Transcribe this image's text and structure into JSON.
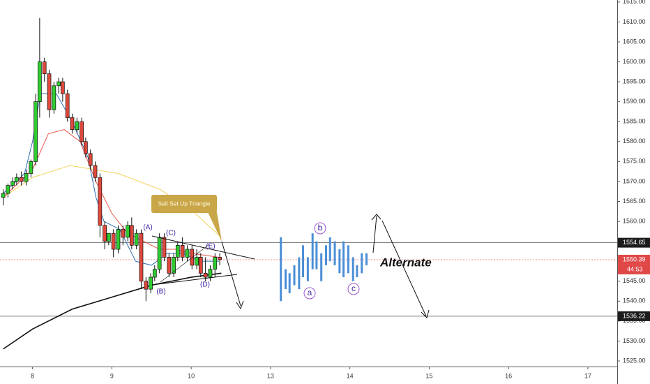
{
  "chart_data": {
    "type": "candlestick",
    "x": [
      -0.37,
      -0.31,
      -0.25,
      -0.2,
      -0.14,
      -0.08,
      -0.02,
      0.04,
      0.09,
      0.15,
      0.21,
      0.27,
      0.33,
      0.38,
      0.44,
      0.5,
      0.56,
      0.62,
      0.67,
      0.73,
      0.79,
      0.85,
      0.91,
      0.96,
      1.02,
      1.08,
      1.14,
      1.2,
      1.25,
      1.31,
      1.37,
      1.43,
      1.49,
      1.54,
      1.6,
      1.66,
      1.72,
      1.78,
      1.83,
      1.89,
      1.95,
      2.01,
      2.07,
      2.12,
      2.18,
      2.24,
      2.3,
      2.36
    ],
    "open": [
      1566,
      1567,
      1569,
      1570,
      1571,
      1570,
      1572,
      1575,
      1590,
      1600,
      1597,
      1588,
      1594,
      1595,
      1592,
      1586,
      1583,
      1585,
      1580,
      1577,
      1574,
      1571,
      1559,
      1555,
      1557,
      1553,
      1558,
      1556,
      1559,
      1554,
      1557,
      1545,
      1543,
      1546,
      1548,
      1556,
      1551,
      1547,
      1551,
      1554,
      1551,
      1553,
      1549,
      1551,
      1547,
      1546,
      1548,
      1551
    ],
    "high": [
      1568,
      1569.5,
      1571,
      1572,
      1572.5,
      1573,
      1575.5,
      1592,
      1611,
      1601,
      1598,
      1595,
      1596,
      1596,
      1593,
      1587,
      1586,
      1586,
      1581,
      1578,
      1575,
      1572,
      1560,
      1557,
      1558,
      1559,
      1559,
      1560,
      1561,
      1558,
      1558,
      1546,
      1547,
      1549,
      1557,
      1557,
      1552,
      1552,
      1555,
      1556,
      1554,
      1554,
      1553,
      1552,
      1551,
      1549,
      1552,
      1552
    ],
    "low": [
      1564,
      1566,
      1568,
      1569,
      1569,
      1569,
      1571,
      1574,
      1586,
      1595,
      1586,
      1587,
      1592,
      1590,
      1585,
      1582,
      1582,
      1579,
      1576,
      1573,
      1570,
      1556,
      1553,
      1554,
      1551,
      1552,
      1554,
      1555,
      1553,
      1553,
      1543,
      1540,
      1542,
      1545,
      1547,
      1550,
      1546,
      1546,
      1550,
      1550,
      1550,
      1548,
      1548,
      1546,
      1545,
      1545,
      1546,
      1549
    ],
    "close": [
      1567,
      1569,
      1570,
      1571,
      1570,
      1572,
      1575,
      1590,
      1600,
      1597,
      1588,
      1594,
      1595,
      1592,
      1586,
      1583,
      1585,
      1580,
      1577,
      1574,
      1571,
      1559,
      1555,
      1557,
      1553,
      1558,
      1556,
      1559,
      1554,
      1557,
      1545,
      1543,
      1546,
      1548,
      1556,
      1551,
      1547,
      1551,
      1554,
      1551,
      1553,
      1549,
      1551,
      1547,
      1546,
      1548,
      1551,
      1550.39
    ],
    "up_color": "#2ecc2e",
    "down_color": "#e0483c",
    "indicators": [
      {
        "color": "#2f6fb0",
        "x": [
          -0.37,
          -0.1,
          0.0,
          0.1,
          0.3,
          0.5,
          0.7,
          0.8,
          0.9,
          1.1,
          1.3,
          1.5,
          1.7,
          1.9,
          2.1,
          2.35
        ],
        "values": [
          1567,
          1572,
          1580,
          1592,
          1592,
          1585,
          1576,
          1566,
          1560,
          1558,
          1550,
          1549,
          1552,
          1552,
          1550,
          1550
        ]
      },
      {
        "color": "#e8564a",
        "x": [
          -0.37,
          0.0,
          0.2,
          0.4,
          0.6,
          0.8,
          1.0,
          1.2,
          1.4,
          1.6,
          1.8,
          2.0,
          2.35
        ],
        "values": [
          1566,
          1573,
          1582,
          1583,
          1580,
          1570,
          1562,
          1557,
          1555,
          1553,
          1553,
          1552,
          1551
        ]
      },
      {
        "color": "#f2d35a",
        "x": [
          -0.37,
          0.0,
          0.47,
          1.08,
          1.61,
          2.05,
          2.38
        ],
        "values": [
          1566,
          1571,
          1574,
          1572,
          1568,
          1562,
          1556
        ]
      },
      {
        "color": "#111111",
        "x": [
          -0.37,
          0.0,
          0.5,
          1.0,
          1.5,
          2.0,
          2.38
        ],
        "values": [
          1528,
          1533,
          1538,
          1541,
          1544,
          1546,
          1547
        ]
      }
    ],
    "projection": {
      "color": "#4a8ed6",
      "x": [
        3.13,
        3.19,
        3.24,
        3.3,
        3.36,
        3.41,
        3.47,
        3.53,
        3.58,
        3.64,
        3.7,
        3.75,
        3.81,
        3.87,
        3.92,
        3.98,
        4.04,
        4.09,
        4.15,
        4.21
      ],
      "high": [
        1556,
        1548,
        1547,
        1549,
        1551,
        1554,
        1551,
        1557,
        1555,
        1552,
        1554,
        1556,
        1555,
        1553,
        1555,
        1554,
        1551,
        1549,
        1552,
        1552
      ],
      "low": [
        1540,
        1543,
        1542,
        1544,
        1543,
        1546,
        1545,
        1548,
        1548,
        1545,
        1549,
        1550,
        1549,
        1547,
        1546,
        1547,
        1545,
        1546,
        1547,
        1549
      ]
    },
    "levels": [
      1554.65,
      1550.39,
      1536.22
    ],
    "countdown": "44:53",
    "xlim": [
      -0.41,
      7.37
    ],
    "xticks": [
      {
        "value": 0,
        "label": "8"
      },
      {
        "value": 1,
        "label": "9"
      },
      {
        "value": 2,
        "label": "10"
      },
      {
        "value": 3,
        "label": "13"
      },
      {
        "value": 4,
        "label": "14"
      },
      {
        "value": 5,
        "label": "15"
      },
      {
        "value": 6,
        "label": "16"
      },
      {
        "value": 7,
        "label": "17"
      }
    ],
    "ylim": [
      1523.6,
      1615.5
    ],
    "yticks": [
      {
        "value": 1525,
        "label": "1525.00"
      },
      {
        "value": 1530,
        "label": "1530.00"
      },
      {
        "value": 1535,
        "label": "1535.00"
      },
      {
        "value": 1540,
        "label": "1540.00"
      },
      {
        "value": 1545,
        "label": "1545.00"
      },
      {
        "value": 1550,
        "label": "1550.00"
      },
      {
        "value": 1555,
        "label": "1555.00"
      },
      {
        "value": 1560,
        "label": "1560.00"
      },
      {
        "value": 1565,
        "label": "1565.00"
      },
      {
        "value": 1570,
        "label": "1570.00"
      },
      {
        "value": 1575,
        "label": "1575.00"
      },
      {
        "value": 1580,
        "label": "1580.00"
      },
      {
        "value": 1585,
        "label": "1585.00"
      },
      {
        "value": 1590,
        "label": "1590.00"
      },
      {
        "value": 1595,
        "label": "1595.00"
      },
      {
        "value": 1600,
        "label": "1600.00"
      },
      {
        "value": 1605,
        "label": "1605.00"
      },
      {
        "value": 1610,
        "label": "1610.00"
      },
      {
        "value": 1615,
        "label": "1615.00"
      }
    ],
    "annotations": {
      "callout": "Sell Set Up Triangle",
      "wave_a": "(A)",
      "wave_b": "(B)",
      "wave_c": "(C)",
      "wave_d": "(D)",
      "wave_e": "(E)",
      "alt_a": "a",
      "alt_b": "b",
      "alt_c": "c",
      "alternate": "Alternate"
    }
  }
}
